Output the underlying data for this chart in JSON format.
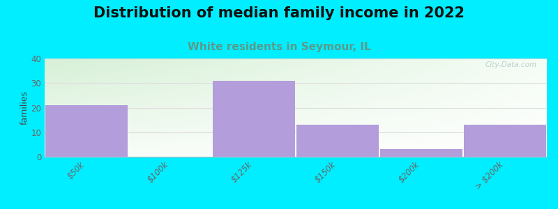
{
  "title": "Distribution of median family income in 2022",
  "subtitle": "White residents in Seymour, IL",
  "categories": [
    "$50k",
    "$100k",
    "$125k",
    "$150k",
    "$200k",
    "> $200k"
  ],
  "values": [
    21,
    0,
    31,
    13,
    3,
    13
  ],
  "bar_color": "#b39ddb",
  "ylabel": "families",
  "ylim": [
    0,
    40
  ],
  "yticks": [
    0,
    10,
    20,
    30,
    40
  ],
  "title_fontsize": 15,
  "subtitle_fontsize": 11,
  "subtitle_color": "#5a9a8a",
  "bg_outer": "#00eeff",
  "bg_grad_topleft": [
    0.84,
    0.94,
    0.84
  ],
  "bg_grad_topright": [
    0.96,
    0.99,
    0.96
  ],
  "bg_grad_botleft": [
    0.97,
    0.99,
    0.97
  ],
  "bg_grad_botright": [
    1.0,
    1.0,
    1.0
  ],
  "watermark": "City-Data.com",
  "grid_color": "#dddddd",
  "tick_label_color": "#666666"
}
